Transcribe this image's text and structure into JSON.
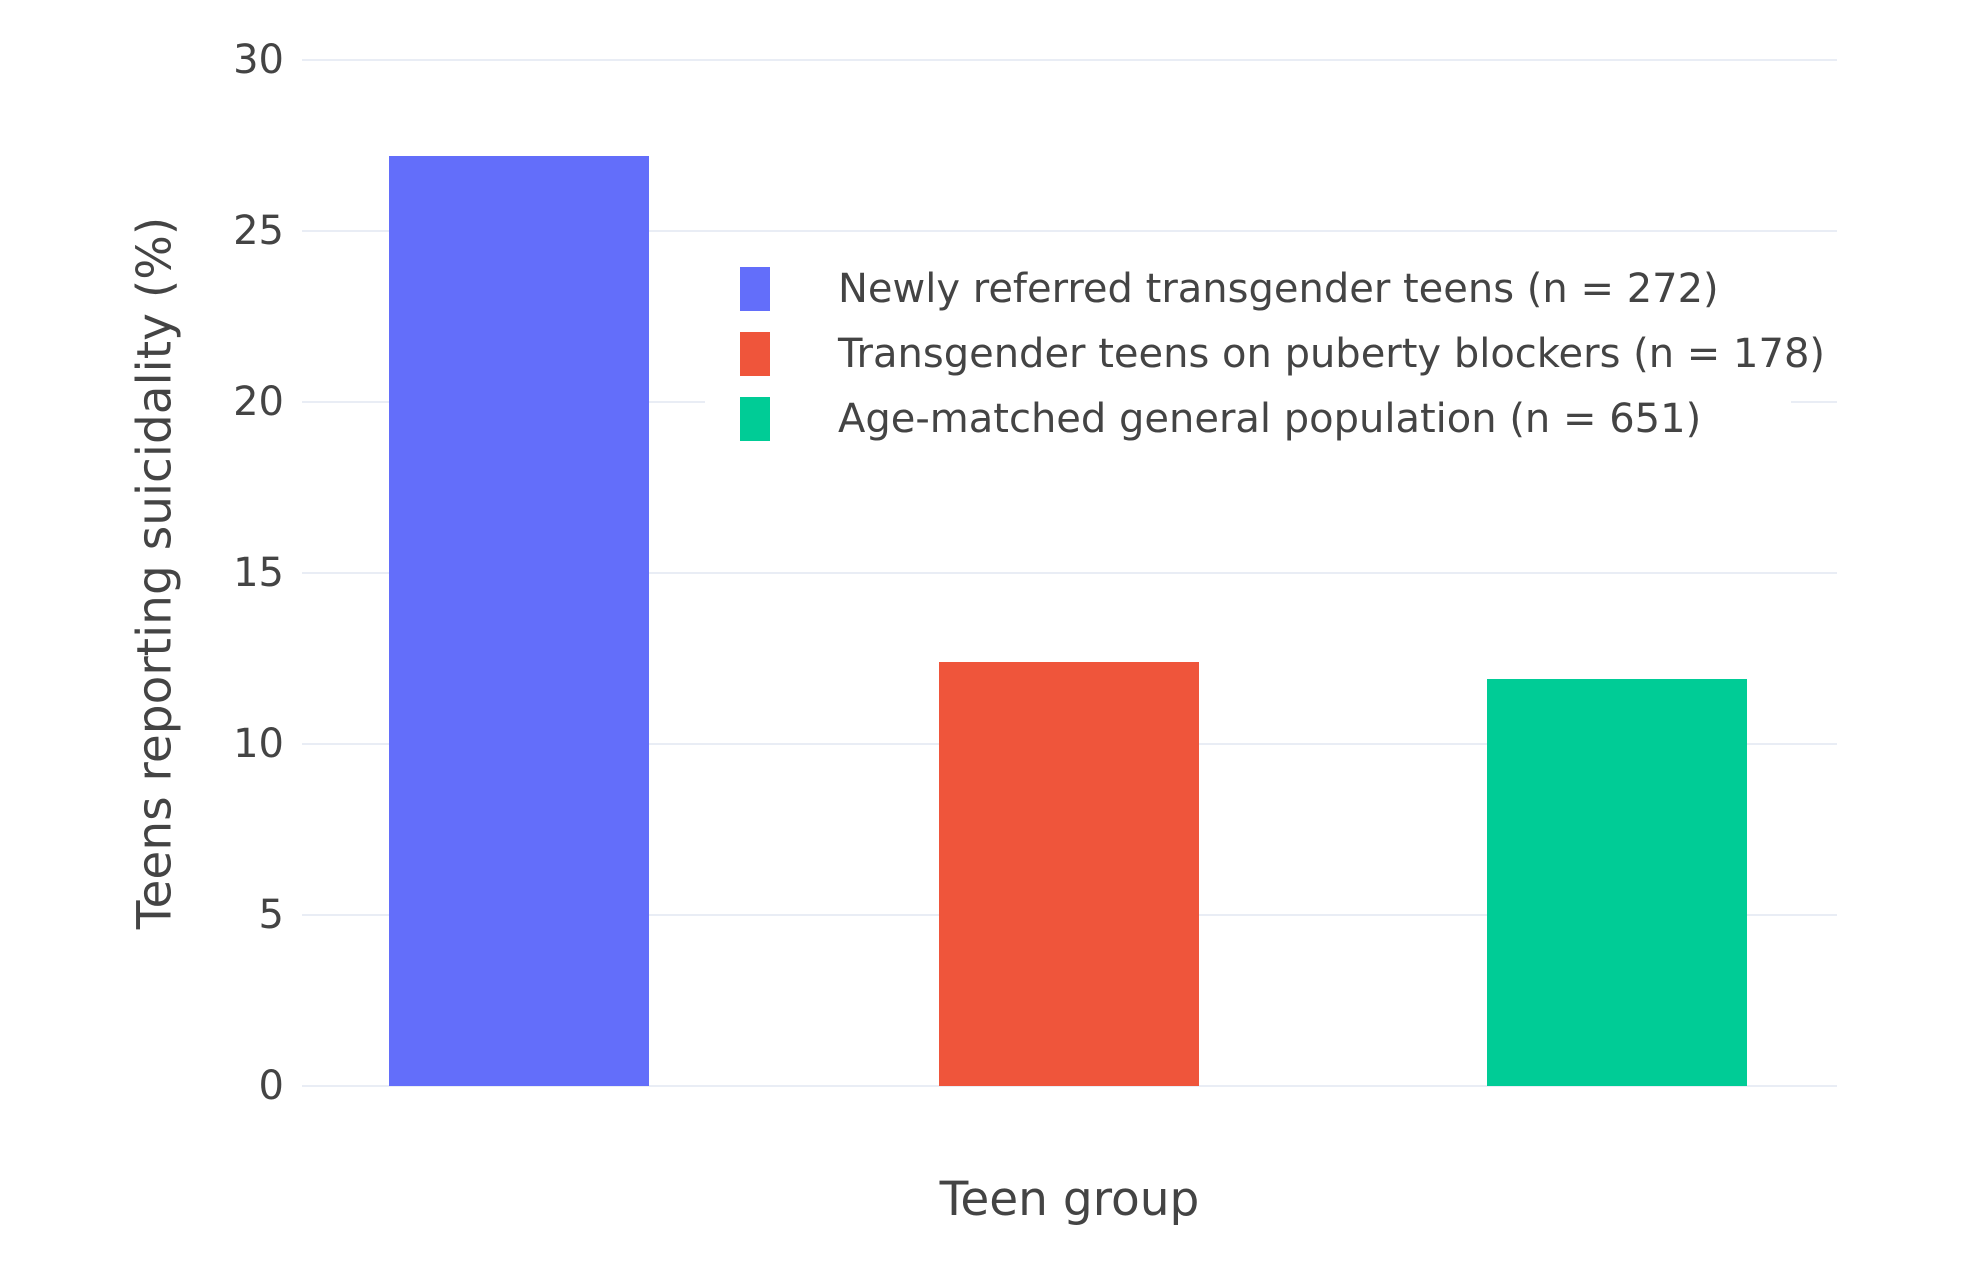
{
  "chart_data": {
    "type": "bar",
    "title": "",
    "xlabel": "Teen group",
    "ylabel": "Teens reporting suicidality (%)",
    "ylim": [
      0,
      30
    ],
    "yticks": [
      0,
      5,
      10,
      15,
      20,
      25,
      30
    ],
    "grid": true,
    "legend_position": "inside top-center",
    "background_color": "#ffffff",
    "gridline_color": "#e9edf5",
    "text_color": "#444444",
    "categories": [
      "Newly referred transgender teens",
      "Transgender teens on puberty blockers",
      "Age-matched general population"
    ],
    "series": [
      {
        "name": "Newly referred transgender teens (n = 272)",
        "values": [
          27.2
        ],
        "color": "#636EFA"
      },
      {
        "name": "Transgender teens on puberty blockers (n = 178)",
        "values": [
          12.4
        ],
        "color": "#EF553B"
      },
      {
        "name": "Age-matched general population (n = 651)",
        "values": [
          11.9
        ],
        "color": "#00CC96"
      }
    ]
  }
}
